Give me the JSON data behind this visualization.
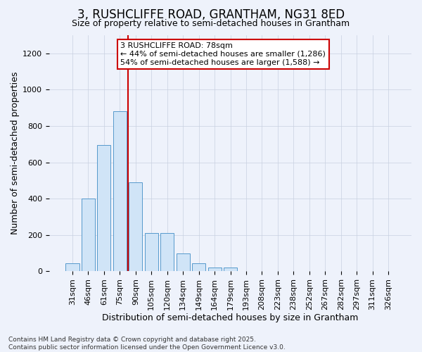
{
  "title1": "3, RUSHCLIFFE ROAD, GRANTHAM, NG31 8ED",
  "title2": "Size of property relative to semi-detached houses in Grantham",
  "xlabel": "Distribution of semi-detached houses by size in Grantham",
  "ylabel": "Number of semi-detached properties",
  "bar_color": "#d0e4f7",
  "bar_edge_color": "#5599cc",
  "categories": [
    "31sqm",
    "46sqm",
    "61sqm",
    "75sqm",
    "90sqm",
    "105sqm",
    "120sqm",
    "134sqm",
    "149sqm",
    "164sqm",
    "179sqm",
    "193sqm",
    "208sqm",
    "223sqm",
    "238sqm",
    "252sqm",
    "267sqm",
    "282sqm",
    "297sqm",
    "311sqm",
    "326sqm"
  ],
  "values": [
    45,
    400,
    695,
    880,
    490,
    210,
    210,
    100,
    45,
    20,
    20,
    2,
    2,
    2,
    2,
    2,
    2,
    2,
    2,
    2,
    2
  ],
  "ylim": [
    0,
    1300
  ],
  "yticks": [
    0,
    200,
    400,
    600,
    800,
    1000,
    1200
  ],
  "property_bin_index": 3,
  "vline_color": "#cc0000",
  "annotation_text": "3 RUSHCLIFFE ROAD: 78sqm\n← 44% of semi-detached houses are smaller (1,286)\n54% of semi-detached houses are larger (1,588) →",
  "annotation_box_facecolor": "#ffffff",
  "annotation_box_edgecolor": "#cc0000",
  "footer": "Contains HM Land Registry data © Crown copyright and database right 2025.\nContains public sector information licensed under the Open Government Licence v3.0.",
  "background_color": "#eef2fb",
  "grid_color": "#c8d0e0",
  "title1_fontsize": 12,
  "title2_fontsize": 9,
  "tick_fontsize": 8,
  "label_fontsize": 9
}
